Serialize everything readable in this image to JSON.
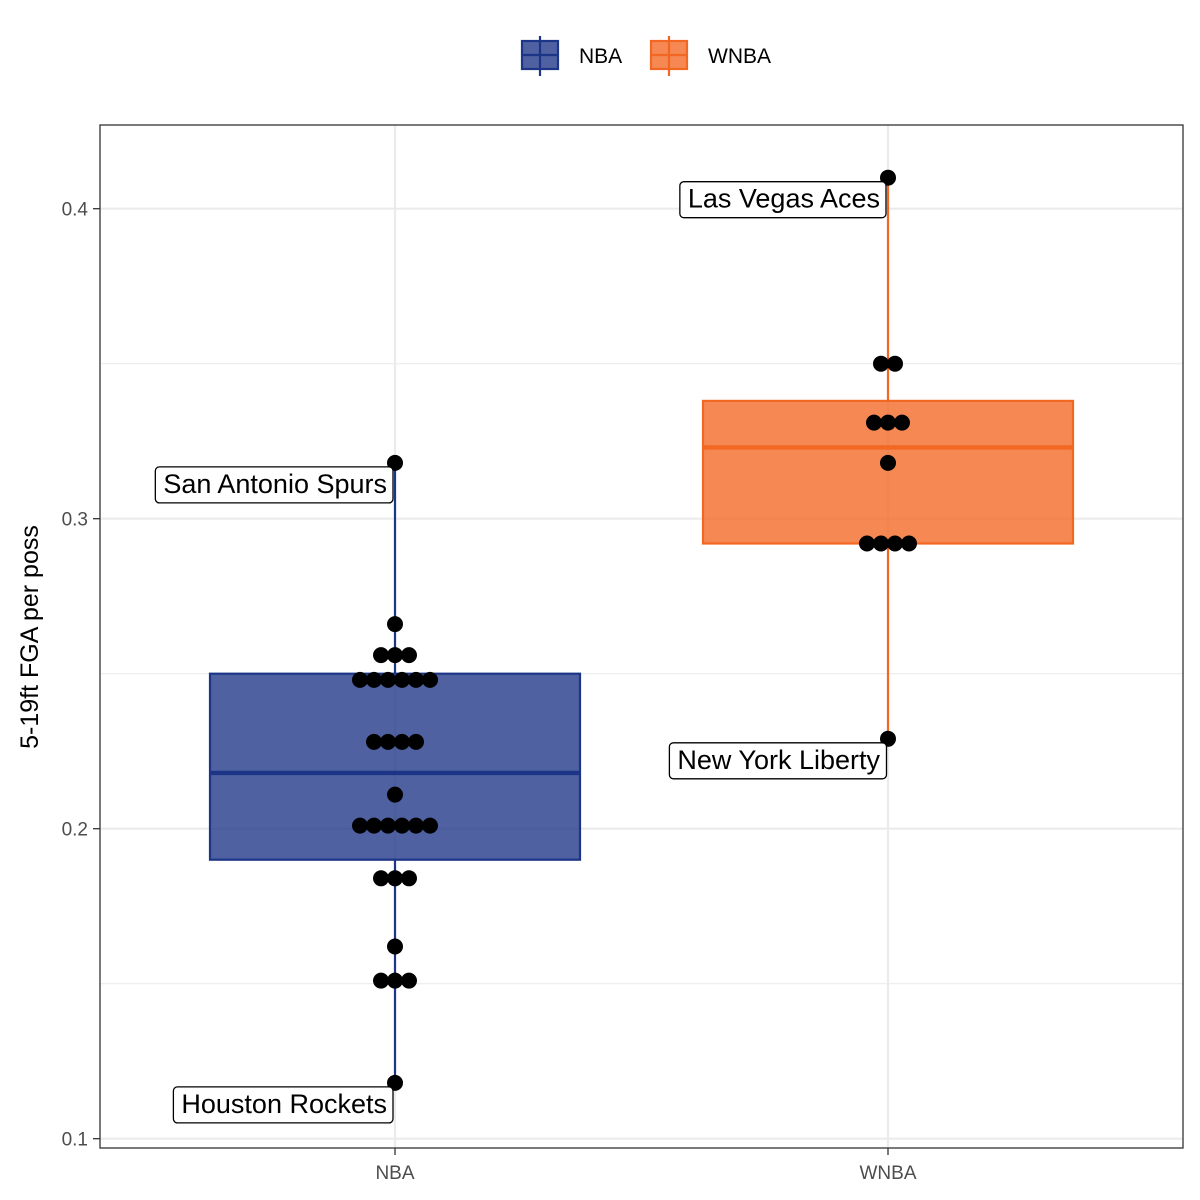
{
  "chart_data": {
    "type": "boxplot",
    "title": "",
    "xlabel": "",
    "ylabel": "5-19ft FGA per poss",
    "ylim": [
      0.097,
      0.427
    ],
    "y_ticks": [
      0.1,
      0.2,
      0.3,
      0.4
    ],
    "y_tick_labels": [
      "0.1",
      "0.2",
      "0.3",
      "0.4"
    ],
    "categories": [
      "NBA",
      "WNBA"
    ],
    "grid": true,
    "legend": {
      "position": "top",
      "entries": [
        "NBA",
        "WNBA"
      ]
    },
    "colors": {
      "NBA": "#1d3586",
      "WNBA": "#f26722"
    },
    "boxes": [
      {
        "category": "NBA",
        "min": 0.118,
        "q1": 0.19,
        "median": 0.218,
        "q3": 0.25,
        "max": 0.318
      },
      {
        "category": "WNBA",
        "min": 0.229,
        "q1": 0.292,
        "median": 0.323,
        "q3": 0.338,
        "max": 0.41
      }
    ],
    "points": [
      {
        "category": "NBA",
        "y": 0.318,
        "n": 1
      },
      {
        "category": "NBA",
        "y": 0.266,
        "n": 1
      },
      {
        "category": "NBA",
        "y": 0.256,
        "n": 3
      },
      {
        "category": "NBA",
        "y": 0.248,
        "n": 6
      },
      {
        "category": "NBA",
        "y": 0.228,
        "n": 4
      },
      {
        "category": "NBA",
        "y": 0.211,
        "n": 1
      },
      {
        "category": "NBA",
        "y": 0.201,
        "n": 6
      },
      {
        "category": "NBA",
        "y": 0.184,
        "n": 3
      },
      {
        "category": "NBA",
        "y": 0.162,
        "n": 1
      },
      {
        "category": "NBA",
        "y": 0.151,
        "n": 3
      },
      {
        "category": "NBA",
        "y": 0.118,
        "n": 1
      },
      {
        "category": "WNBA",
        "y": 0.41,
        "n": 1
      },
      {
        "category": "WNBA",
        "y": 0.35,
        "n": 2
      },
      {
        "category": "WNBA",
        "y": 0.331,
        "n": 3
      },
      {
        "category": "WNBA",
        "y": 0.318,
        "n": 1
      },
      {
        "category": "WNBA",
        "y": 0.292,
        "n": 4
      },
      {
        "category": "WNBA",
        "y": 0.229,
        "n": 1
      }
    ],
    "annotations": [
      {
        "text": "San Antonio Spurs",
        "category": "NBA",
        "y": 0.318
      },
      {
        "text": "Houston Rockets",
        "category": "NBA",
        "y": 0.118
      },
      {
        "text": "Las Vegas Aces",
        "category": "WNBA",
        "y": 0.41
      },
      {
        "text": "New York Liberty",
        "category": "WNBA",
        "y": 0.229
      }
    ]
  }
}
